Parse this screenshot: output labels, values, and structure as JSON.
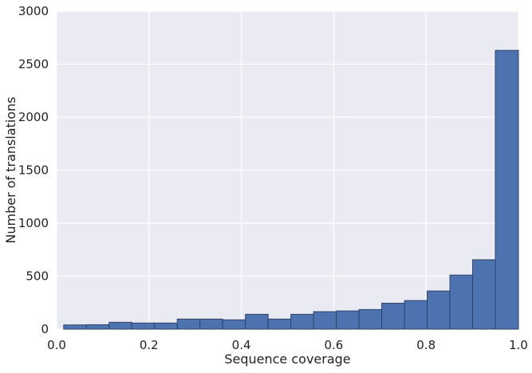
{
  "chart_data": {
    "type": "bar",
    "subtype": "histogram",
    "title": "",
    "xlabel": "Sequence coverage",
    "ylabel": "Number of translations",
    "xlim": [
      0.0,
      1.0
    ],
    "ylim": [
      0,
      3000
    ],
    "xticks": [
      0.0,
      0.2,
      0.4,
      0.6,
      0.8,
      1.0
    ],
    "xtick_labels": [
      "0.0",
      "0.2",
      "0.4",
      "0.6",
      "0.8",
      "1.0"
    ],
    "yticks": [
      0,
      500,
      1000,
      1500,
      2000,
      2500,
      3000
    ],
    "ytick_labels": [
      "0",
      "500",
      "1000",
      "1500",
      "2000",
      "2500",
      "3000"
    ],
    "grid": true,
    "legend": "none",
    "bins": [
      {
        "start": 0.0152,
        "end": 0.0644,
        "value": 40
      },
      {
        "start": 0.0644,
        "end": 0.1136,
        "value": 42
      },
      {
        "start": 0.1136,
        "end": 0.1628,
        "value": 65
      },
      {
        "start": 0.1628,
        "end": 0.212,
        "value": 58
      },
      {
        "start": 0.212,
        "end": 0.2612,
        "value": 58
      },
      {
        "start": 0.2612,
        "end": 0.3104,
        "value": 95
      },
      {
        "start": 0.3104,
        "end": 0.3596,
        "value": 95
      },
      {
        "start": 0.3596,
        "end": 0.4088,
        "value": 88
      },
      {
        "start": 0.4088,
        "end": 0.458,
        "value": 140
      },
      {
        "start": 0.458,
        "end": 0.5072,
        "value": 95
      },
      {
        "start": 0.5072,
        "end": 0.5564,
        "value": 140
      },
      {
        "start": 0.5564,
        "end": 0.6056,
        "value": 165
      },
      {
        "start": 0.6056,
        "end": 0.6548,
        "value": 172
      },
      {
        "start": 0.6548,
        "end": 0.704,
        "value": 185
      },
      {
        "start": 0.704,
        "end": 0.7532,
        "value": 245
      },
      {
        "start": 0.7532,
        "end": 0.8024,
        "value": 270
      },
      {
        "start": 0.8024,
        "end": 0.8516,
        "value": 360
      },
      {
        "start": 0.8516,
        "end": 0.9008,
        "value": 510
      },
      {
        "start": 0.9008,
        "end": 0.95,
        "value": 655
      },
      {
        "start": 0.95,
        "end": 1.0,
        "value": 2630
      }
    ]
  },
  "colors": {
    "plot_background": "#EAEAF2",
    "grid": "#FFFFFF",
    "bar_fill": "#4C72B0",
    "bar_edge": "#2F4468",
    "text": "#222222"
  }
}
